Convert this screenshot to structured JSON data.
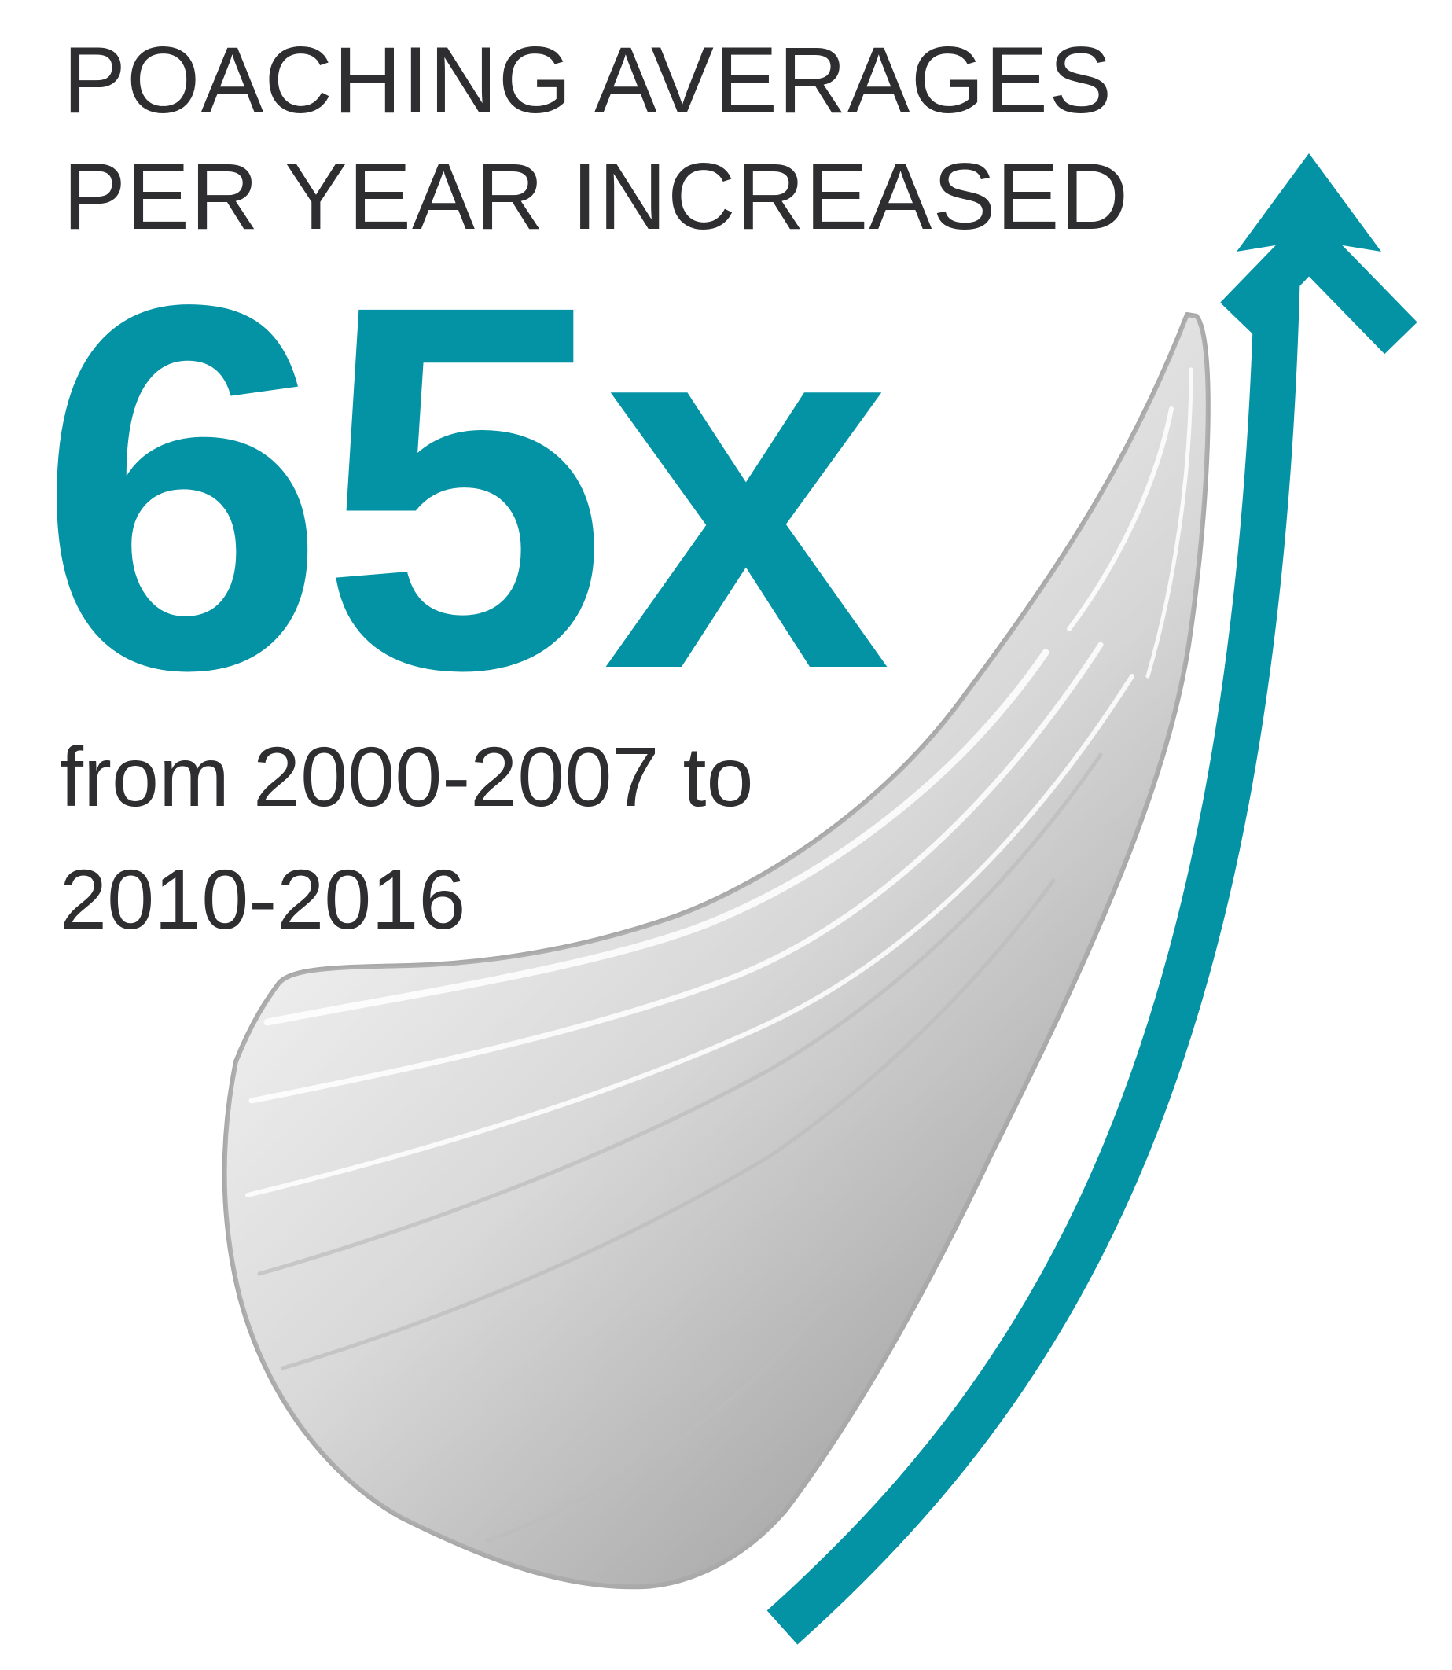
{
  "headline": {
    "line1": "POACHING AVERAGES",
    "line2": "PER YEAR INCREASED"
  },
  "stat": {
    "value": "65x"
  },
  "period": {
    "line1": "from 2000-2007 to",
    "line2": "2010-2016"
  },
  "colors": {
    "accent": "#0492a5",
    "text": "#2e2e30",
    "horn_light": "#f4f4f4",
    "horn_dark": "#a6a6a6",
    "horn_outline": "#a9a9a9"
  },
  "icons": {
    "horn": "rhino-horn-icon",
    "arrow": "rising-arrow-icon"
  }
}
